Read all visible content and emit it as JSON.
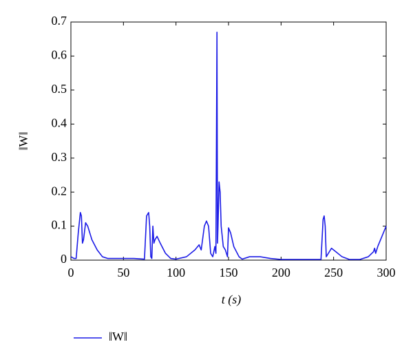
{
  "chart_data": {
    "type": "line",
    "xlabel": "t (s)",
    "ylabel": "‖W‖",
    "x": [
      0,
      3,
      5,
      7,
      9,
      10,
      11,
      12,
      14,
      16,
      20,
      25,
      30,
      35,
      40,
      60,
      70,
      72,
      74,
      75,
      76,
      77,
      78,
      79,
      80,
      82,
      85,
      90,
      95,
      100,
      110,
      118,
      122,
      124,
      127,
      129,
      131,
      133,
      135,
      137,
      138,
      139,
      139.5,
      140,
      141,
      142,
      143,
      145,
      147,
      149,
      150,
      152,
      155,
      160,
      163,
      170,
      180,
      190,
      200,
      220,
      238,
      240,
      241,
      242,
      243,
      245,
      248,
      252,
      258,
      265,
      275,
      283,
      288,
      289,
      290,
      292,
      296,
      300
    ],
    "series": [
      {
        "name": "‖W‖",
        "color": "#1a1ae6",
        "values": [
          0.01,
          0.005,
          0.005,
          0.08,
          0.14,
          0.13,
          0.05,
          0.06,
          0.11,
          0.1,
          0.06,
          0.03,
          0.01,
          0.005,
          0.005,
          0.005,
          0.003,
          0.13,
          0.14,
          0.1,
          0.01,
          0.005,
          0.1,
          0.05,
          0.06,
          0.07,
          0.05,
          0.02,
          0.005,
          0.003,
          0.01,
          0.03,
          0.045,
          0.03,
          0.1,
          0.115,
          0.1,
          0.02,
          0.01,
          0.04,
          0.02,
          0.67,
          0.05,
          0.1,
          0.23,
          0.2,
          0.1,
          0.04,
          0.03,
          0.01,
          0.095,
          0.08,
          0.04,
          0.01,
          0.003,
          0.01,
          0.01,
          0.005,
          0.002,
          0.002,
          0.002,
          0.12,
          0.13,
          0.1,
          0.01,
          0.02,
          0.035,
          0.025,
          0.01,
          0.002,
          0.002,
          0.01,
          0.025,
          0.035,
          0.02,
          0.04,
          0.07,
          0.1
        ]
      }
    ],
    "xlim": [
      0,
      300
    ],
    "xticks": [
      0,
      50,
      100,
      150,
      200,
      250,
      300
    ],
    "ylim": [
      0,
      0.7
    ],
    "yticks": [
      0,
      0.1,
      0.2,
      0.3,
      0.4,
      0.5,
      0.6,
      0.7
    ],
    "legend": "bottom-left"
  }
}
